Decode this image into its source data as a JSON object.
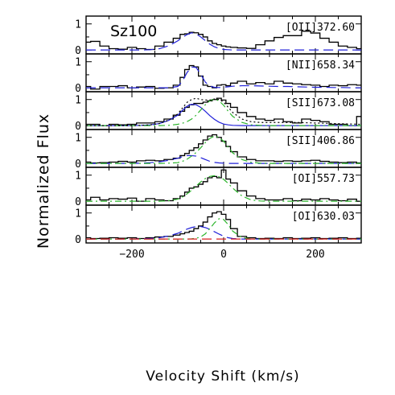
{
  "chart_data": {
    "type": "line",
    "title": "Sz100",
    "xlabel": "Velocity Shift (km/s)",
    "ylabel": "Normalized Flux",
    "xlim": [
      -300,
      300
    ],
    "xticks": [
      -200,
      0,
      200
    ],
    "yticks": [
      0,
      1
    ],
    "x": [
      -300,
      -280,
      -260,
      -240,
      -220,
      -200,
      -180,
      -160,
      -140,
      -120,
      -100,
      -90,
      -80,
      -70,
      -60,
      -50,
      -40,
      -30,
      -20,
      -10,
      0,
      10,
      20,
      40,
      60,
      80,
      100,
      120,
      140,
      160,
      180,
      200,
      220,
      240,
      260,
      280,
      300
    ],
    "panels": [
      {
        "label": "[OII]372.60",
        "ylim": [
          -0.15,
          1.3
        ],
        "observed": [
          0.3,
          0.33,
          0.15,
          0.05,
          0.03,
          0.1,
          0.05,
          0.02,
          0.15,
          0.3,
          0.45,
          0.6,
          0.62,
          0.68,
          0.66,
          0.6,
          0.5,
          0.35,
          0.25,
          0.2,
          0.15,
          0.12,
          0.1,
          0.08,
          0.06,
          0.2,
          0.35,
          0.48,
          0.55,
          0.55,
          0.72,
          0.65,
          0.45,
          0.3,
          0.15,
          0.1,
          0.05
        ],
        "fits": [
          {
            "color": "#2121d9",
            "dash": "12,6",
            "values": [
              0,
              0,
              0,
              0,
              0,
              0,
              0,
              0.01,
              0.05,
              0.16,
              0.35,
              0.48,
              0.59,
              0.66,
              0.62,
              0.5,
              0.36,
              0.22,
              0.12,
              0.06,
              0.02,
              0.01,
              0,
              0,
              0,
              0,
              0,
              0,
              0,
              0,
              0,
              0,
              0,
              0,
              0,
              0,
              0
            ]
          }
        ]
      },
      {
        "label": "[NII]658.34",
        "ylim": [
          -0.15,
          1.3
        ],
        "observed": [
          0.05,
          -0.05,
          0.05,
          0.05,
          0.08,
          0.0,
          0.03,
          0.05,
          -0.02,
          0.0,
          0.1,
          0.4,
          0.7,
          0.85,
          0.8,
          0.45,
          0.1,
          0.05,
          0.0,
          0.1,
          0.12,
          0.08,
          0.18,
          0.25,
          0.15,
          0.2,
          0.15,
          0.25,
          0.18,
          0.15,
          0.12,
          0.1,
          0.05,
          0.1,
          0.08,
          0.12,
          0.1
        ],
        "fits": [
          {
            "color": "#2121d9",
            "dash": "12,6",
            "values": [
              0,
              0,
              0,
              0,
              0,
              0,
              0,
              0,
              0,
              0,
              0.05,
              0.25,
              0.58,
              0.8,
              0.78,
              0.52,
              0.22,
              0.06,
              0.02,
              0.01,
              0.02,
              0.04,
              0.06,
              0.08,
              0.08,
              0.07,
              0.06,
              0.05,
              0.05,
              0.04,
              0.03,
              0.02,
              0.02,
              0.01,
              0.01,
              0,
              0
            ]
          }
        ]
      },
      {
        "label": "[SII]673.08",
        "ylim": [
          -0.15,
          1.3
        ],
        "observed": [
          0.05,
          0.05,
          0.0,
          0.05,
          0.03,
          0.05,
          0.1,
          0.1,
          0.15,
          0.25,
          0.4,
          0.55,
          0.7,
          0.8,
          0.85,
          0.85,
          0.9,
          0.95,
          1.0,
          1.05,
          0.98,
          0.85,
          0.7,
          0.5,
          0.35,
          0.25,
          0.2,
          0.25,
          0.15,
          0.1,
          0.25,
          0.2,
          0.15,
          0.05,
          0.05,
          0.0,
          0.35
        ],
        "fits": [
          {
            "color": "#2121d9",
            "dash": "",
            "values": [
              0,
              0,
              0,
              0,
              0,
              0,
              0.01,
              0.03,
              0.08,
              0.2,
              0.4,
              0.58,
              0.74,
              0.82,
              0.8,
              0.7,
              0.55,
              0.38,
              0.24,
              0.13,
              0.06,
              0.03,
              0.01,
              0,
              0,
              0,
              0,
              0,
              0,
              0,
              0,
              0,
              0,
              0,
              0,
              0,
              0
            ]
          },
          {
            "color": "#2cb52c",
            "dash": "8,4,2,4",
            "values": [
              0,
              0,
              0,
              0,
              0,
              0,
              0,
              0,
              0,
              0.01,
              0.05,
              0.09,
              0.15,
              0.25,
              0.4,
              0.6,
              0.8,
              0.96,
              1.02,
              0.95,
              0.78,
              0.55,
              0.35,
              0.12,
              0.03,
              0.01,
              0,
              0,
              0,
              0,
              0,
              0,
              0,
              0,
              0,
              0,
              0
            ]
          },
          {
            "color": "#000000",
            "dash": "2,3",
            "values": [
              0,
              0,
              0,
              0,
              0,
              0,
              0.01,
              0.03,
              0.08,
              0.21,
              0.45,
              0.67,
              0.89,
              1.0,
              1.05,
              1.0,
              0.98,
              0.98,
              1.02,
              1.0,
              0.9,
              0.7,
              0.5,
              0.25,
              0.15,
              0.12,
              0.12,
              0.12,
              0.12,
              0.12,
              0.11,
              0.1,
              0.09,
              0.08,
              0.07,
              0.06,
              0.05
            ]
          }
        ]
      },
      {
        "label": "[SII]406.86",
        "ylim": [
          -0.15,
          1.3
        ],
        "observed": [
          0.05,
          0.02,
          0.03,
          0.05,
          0.08,
          0.05,
          0.1,
          0.12,
          0.1,
          0.15,
          0.2,
          0.3,
          0.38,
          0.5,
          0.6,
          0.75,
          0.9,
          1.05,
          1.1,
          1.0,
          0.85,
          0.65,
          0.45,
          0.25,
          0.15,
          0.1,
          0.1,
          0.08,
          0.1,
          0.08,
          0.1,
          0.12,
          0.08,
          0.05,
          0.03,
          0.05,
          0.02
        ],
        "fits": [
          {
            "color": "#2121d9",
            "dash": "12,6",
            "values": [
              0,
              0,
              0,
              0,
              0,
              0,
              0.01,
              0.03,
              0.06,
              0.12,
              0.2,
              0.26,
              0.3,
              0.3,
              0.28,
              0.22,
              0.15,
              0.08,
              0.04,
              0.02,
              0.01,
              0,
              0,
              0,
              0,
              0,
              0,
              0,
              0,
              0,
              0,
              0,
              0,
              0,
              0,
              0,
              0
            ]
          },
          {
            "color": "#2cb52c",
            "dash": "8,4,2,4",
            "values": [
              0,
              0,
              0,
              0,
              0,
              0,
              0,
              0,
              0,
              0.01,
              0.03,
              0.08,
              0.16,
              0.28,
              0.42,
              0.6,
              0.8,
              0.96,
              1.05,
              1.0,
              0.85,
              0.62,
              0.4,
              0.15,
              0.04,
              0.01,
              0,
              0,
              0,
              0,
              0,
              0,
              0,
              0,
              0,
              0,
              0
            ]
          }
        ]
      },
      {
        "label": "[OI]557.73",
        "ylim": [
          -0.15,
          1.3
        ],
        "observed": [
          0.05,
          0.15,
          0.05,
          0.1,
          0.08,
          0.12,
          0.0,
          0.1,
          0.05,
          0.02,
          0.1,
          0.2,
          0.35,
          0.5,
          0.55,
          0.65,
          0.75,
          0.9,
          0.95,
          0.9,
          1.2,
          0.85,
          0.7,
          0.4,
          0.2,
          0.1,
          0.05,
          0.05,
          0.1,
          0.02,
          0.08,
          0.05,
          0.1,
          0.05,
          0.02,
          0.08,
          0.0
        ],
        "fits": [
          {
            "color": "#2cb52c",
            "dash": "8,4,2,4",
            "values": [
              0,
              0,
              0,
              0,
              0,
              0,
              0,
              0,
              0,
              0.02,
              0.08,
              0.16,
              0.28,
              0.42,
              0.58,
              0.74,
              0.87,
              0.95,
              0.98,
              0.94,
              0.84,
              0.68,
              0.5,
              0.2,
              0.05,
              0.01,
              0,
              0,
              0,
              0,
              0,
              0,
              0,
              0,
              0,
              0,
              0
            ]
          }
        ]
      },
      {
        "label": "[OI]630.03",
        "ylim": [
          -0.15,
          1.3
        ],
        "observed": [
          0.05,
          0.02,
          0.03,
          0.05,
          0.03,
          0.05,
          0.02,
          0.05,
          0.08,
          0.1,
          0.15,
          0.2,
          0.25,
          0.3,
          0.4,
          0.5,
          0.65,
          0.85,
          1.0,
          1.05,
          0.95,
          0.75,
          0.4,
          0.1,
          0.05,
          0.02,
          0.03,
          0.02,
          0.05,
          0.02,
          0.03,
          0.05,
          0.02,
          0.03,
          0.05,
          0.02,
          0.03
        ],
        "fits": [
          {
            "color": "#2121d9",
            "dash": "12,6",
            "values": [
              0,
              0,
              0,
              0,
              0,
              0,
              0.01,
              0.02,
              0.05,
              0.12,
              0.22,
              0.3,
              0.38,
              0.44,
              0.48,
              0.48,
              0.44,
              0.37,
              0.28,
              0.19,
              0.11,
              0.05,
              0.02,
              0,
              0,
              0,
              0,
              0,
              0,
              0,
              0,
              0,
              0,
              0,
              0,
              0,
              0
            ]
          },
          {
            "color": "#2cb52c",
            "dash": "8,4,2,4",
            "values": [
              0,
              0,
              0,
              0,
              0,
              0,
              0,
              0,
              0,
              0,
              0,
              0,
              0,
              0.01,
              0.03,
              0.08,
              0.2,
              0.4,
              0.62,
              0.78,
              0.75,
              0.55,
              0.3,
              0.06,
              0,
              0,
              0,
              0,
              0,
              0,
              0,
              0,
              0,
              0,
              0,
              0,
              0
            ]
          },
          {
            "color": "#d92121",
            "dash": "12,6",
            "values": [
              0,
              0,
              0,
              0,
              0,
              0,
              0,
              0,
              0,
              0,
              0,
              0,
              0,
              0,
              0,
              0,
              0,
              0,
              0,
              0,
              0,
              0,
              0,
              0,
              0,
              0,
              0,
              0,
              0,
              0,
              0,
              0,
              0,
              0,
              0,
              0,
              0
            ]
          }
        ]
      }
    ]
  }
}
